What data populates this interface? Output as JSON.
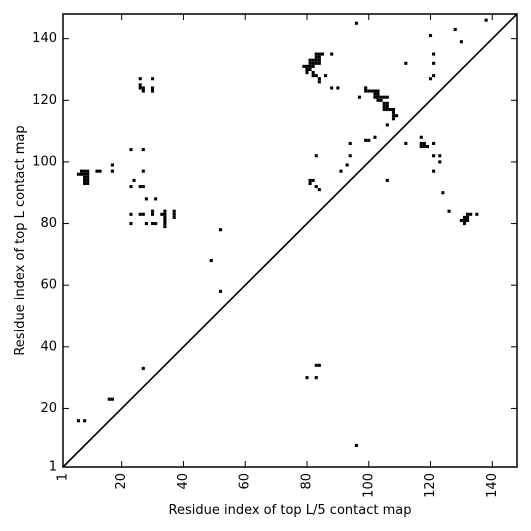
{
  "chart_data": {
    "type": "scatter",
    "xlabel": "Residue index of top L/5 contact map",
    "ylabel": "Residue index of top L contact map",
    "xlim": [
      1,
      148
    ],
    "ylim": [
      1,
      148
    ],
    "xticks": [
      1,
      20,
      40,
      60,
      80,
      100,
      120,
      140
    ],
    "yticks": [
      1,
      20,
      40,
      60,
      80,
      100,
      120,
      140
    ],
    "grid": false,
    "diagonal": true,
    "marker": "square",
    "marker_color": "#000000",
    "points": [
      [
        6,
        16
      ],
      [
        8,
        16
      ],
      [
        16,
        23
      ],
      [
        17,
        23
      ],
      [
        27,
        33
      ],
      [
        49,
        68
      ],
      [
        52,
        78
      ],
      [
        52,
        58
      ],
      [
        80,
        30
      ],
      [
        83,
        30
      ],
      [
        83,
        34
      ],
      [
        84,
        34
      ],
      [
        96,
        8
      ],
      [
        6,
        96
      ],
      [
        7,
        96
      ],
      [
        7,
        97
      ],
      [
        8,
        97
      ],
      [
        9,
        97
      ],
      [
        8,
        96
      ],
      [
        9,
        96
      ],
      [
        8,
        95
      ],
      [
        9,
        95
      ],
      [
        8,
        94
      ],
      [
        9,
        94
      ],
      [
        8,
        93
      ],
      [
        9,
        93
      ],
      [
        12,
        97
      ],
      [
        13,
        97
      ],
      [
        17,
        97
      ],
      [
        17,
        99
      ],
      [
        23,
        104
      ],
      [
        27,
        104
      ],
      [
        27,
        97
      ],
      [
        23,
        92
      ],
      [
        24,
        94
      ],
      [
        26,
        92
      ],
      [
        27,
        92
      ],
      [
        28,
        88
      ],
      [
        31,
        88
      ],
      [
        23,
        83
      ],
      [
        23,
        80
      ],
      [
        26,
        83
      ],
      [
        27,
        83
      ],
      [
        28,
        80
      ],
      [
        30,
        84
      ],
      [
        30,
        83
      ],
      [
        30,
        80
      ],
      [
        31,
        80
      ],
      [
        33,
        83
      ],
      [
        34,
        84
      ],
      [
        34,
        83
      ],
      [
        34,
        82
      ],
      [
        34,
        81
      ],
      [
        34,
        80
      ],
      [
        34,
        79
      ],
      [
        37,
        84
      ],
      [
        37,
        83
      ],
      [
        37,
        82
      ],
      [
        26,
        127
      ],
      [
        26,
        125
      ],
      [
        26,
        124
      ],
      [
        27,
        124
      ],
      [
        27,
        123
      ],
      [
        30,
        127
      ],
      [
        30,
        124
      ],
      [
        30,
        123
      ],
      [
        79,
        131
      ],
      [
        80,
        131
      ],
      [
        80,
        130
      ],
      [
        80,
        129
      ],
      [
        81,
        133
      ],
      [
        81,
        132
      ],
      [
        81,
        131
      ],
      [
        81,
        130
      ],
      [
        82,
        133
      ],
      [
        82,
        132
      ],
      [
        82,
        131
      ],
      [
        82,
        129
      ],
      [
        82,
        128
      ],
      [
        83,
        135
      ],
      [
        83,
        134
      ],
      [
        83,
        133
      ],
      [
        83,
        132
      ],
      [
        83,
        128
      ],
      [
        84,
        135
      ],
      [
        84,
        134
      ],
      [
        84,
        133
      ],
      [
        84,
        132
      ],
      [
        84,
        127
      ],
      [
        84,
        126
      ],
      [
        85,
        135
      ],
      [
        86,
        128
      ],
      [
        88,
        135
      ],
      [
        88,
        124
      ],
      [
        90,
        124
      ],
      [
        81,
        94
      ],
      [
        81,
        93
      ],
      [
        82,
        94
      ],
      [
        83,
        102
      ],
      [
        83,
        92
      ],
      [
        84,
        91
      ],
      [
        91,
        97
      ],
      [
        93,
        99
      ],
      [
        94,
        102
      ],
      [
        94,
        106
      ],
      [
        96,
        145
      ],
      [
        97,
        121
      ],
      [
        99,
        124
      ],
      [
        99,
        123
      ],
      [
        100,
        123
      ],
      [
        101,
        123
      ],
      [
        102,
        123
      ],
      [
        102,
        122
      ],
      [
        102,
        121
      ],
      [
        103,
        123
      ],
      [
        103,
        122
      ],
      [
        103,
        121
      ],
      [
        103,
        120
      ],
      [
        104,
        121
      ],
      [
        104,
        120
      ],
      [
        105,
        121
      ],
      [
        105,
        119
      ],
      [
        105,
        118
      ],
      [
        105,
        117
      ],
      [
        106,
        121
      ],
      [
        106,
        119
      ],
      [
        106,
        118
      ],
      [
        106,
        117
      ],
      [
        107,
        117
      ],
      [
        108,
        117
      ],
      [
        108,
        116
      ],
      [
        108,
        115
      ],
      [
        108,
        114
      ],
      [
        109,
        115
      ],
      [
        106,
        112
      ],
      [
        106,
        94
      ],
      [
        99,
        107
      ],
      [
        100,
        107
      ],
      [
        102,
        108
      ],
      [
        112,
        106
      ],
      [
        112,
        132
      ],
      [
        117,
        108
      ],
      [
        117,
        106
      ],
      [
        117,
        105
      ],
      [
        118,
        106
      ],
      [
        118,
        105
      ],
      [
        119,
        105
      ],
      [
        120,
        141
      ],
      [
        120,
        127
      ],
      [
        121,
        135
      ],
      [
        121,
        132
      ],
      [
        121,
        128
      ],
      [
        121,
        106
      ],
      [
        121,
        102
      ],
      [
        121,
        97
      ],
      [
        123,
        102
      ],
      [
        123,
        100
      ],
      [
        124,
        90
      ],
      [
        126,
        84
      ],
      [
        128,
        143
      ],
      [
        130,
        139
      ],
      [
        130,
        81
      ],
      [
        131,
        82
      ],
      [
        131,
        81
      ],
      [
        131,
        80
      ],
      [
        132,
        83
      ],
      [
        132,
        82
      ],
      [
        132,
        81
      ],
      [
        133,
        83
      ],
      [
        135,
        83
      ],
      [
        138,
        146
      ]
    ]
  }
}
